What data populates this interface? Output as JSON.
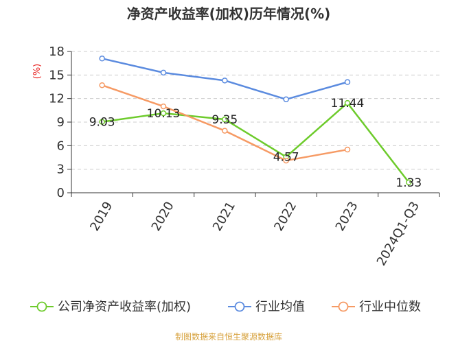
{
  "chart_data": {
    "type": "line",
    "title": "净资产收益率(加权)历年情况(%)",
    "ylabel": "(%)",
    "xlabel": "",
    "categories": [
      "2019",
      "2020",
      "2021",
      "2022",
      "2023",
      "2024Q1-Q3"
    ],
    "ylim": [
      0,
      18
    ],
    "yticks": [
      0,
      3,
      6,
      9,
      12,
      15,
      18
    ],
    "grid": true,
    "legend_position": "bottom",
    "series": [
      {
        "name": "公司净资产收益率(加权)",
        "color": "#6dcb2b",
        "values": [
          9.03,
          10.13,
          9.35,
          4.57,
          11.44,
          1.33
        ],
        "labels": [
          "9.03",
          "10.13",
          "9.35",
          "4.57",
          "11.44",
          "1.33"
        ]
      },
      {
        "name": "行业均值",
        "color": "#5b8bdf",
        "values": [
          17.1,
          15.3,
          14.3,
          11.9,
          14.1,
          null
        ]
      },
      {
        "name": "行业中位数",
        "color": "#f69a64",
        "values": [
          13.7,
          11.0,
          7.9,
          4.1,
          5.5,
          null
        ]
      }
    ],
    "source": "制图数据来自恒生聚源数据库"
  },
  "colors": {
    "axis": "#333333",
    "grid": "#cccccc",
    "unit": "#e8201e",
    "source": "#d7a23e"
  }
}
